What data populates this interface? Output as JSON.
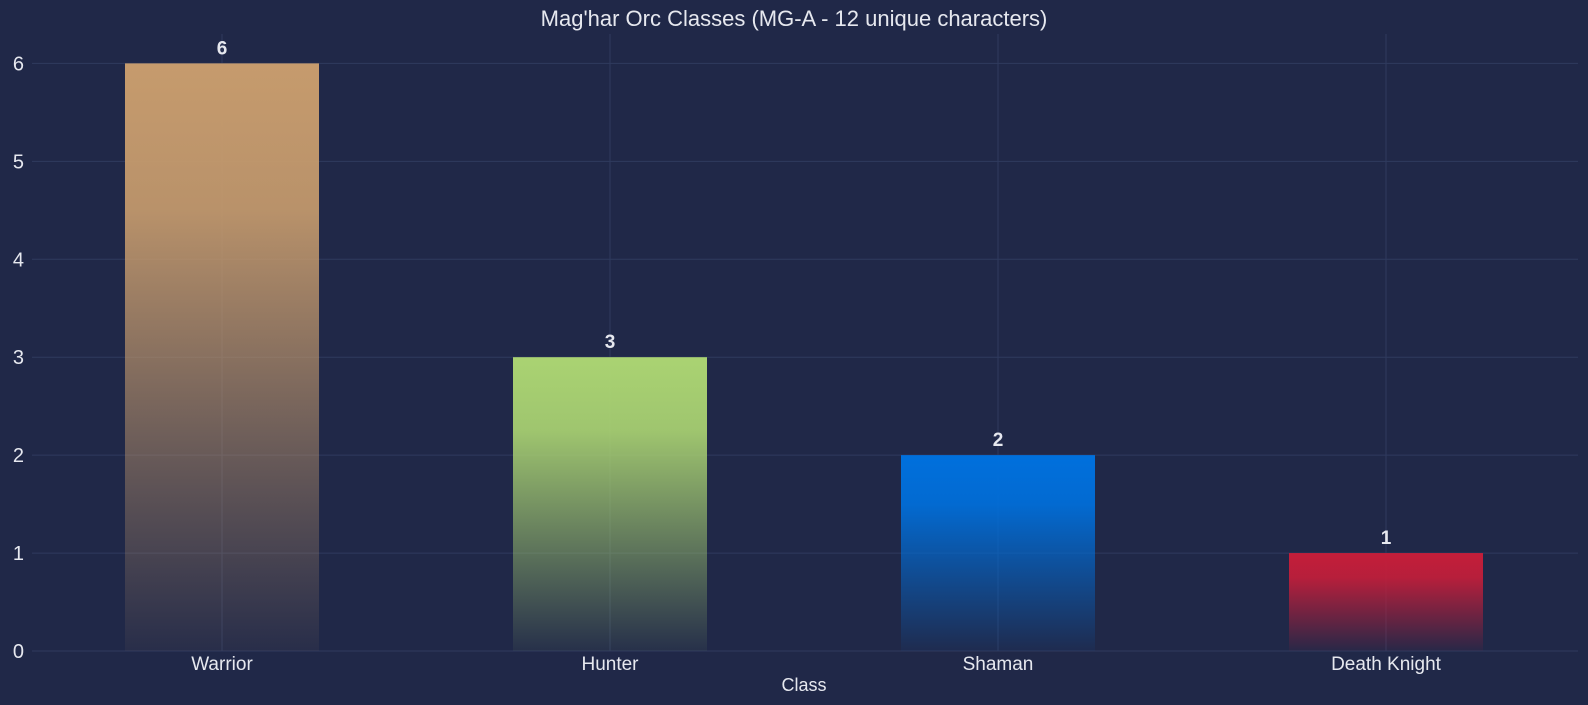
{
  "chart_data": {
    "type": "bar",
    "title": "Mag'har Orc Classes (MG-A - 12 unique characters)",
    "xlabel": "Class",
    "ylabel": "",
    "categories": [
      "Warrior",
      "Hunter",
      "Shaman",
      "Death Knight"
    ],
    "values": [
      6,
      3,
      2,
      1
    ],
    "data_labels": [
      "6",
      "3",
      "2",
      "1"
    ],
    "colors": [
      "#c69b6d",
      "#aad372",
      "#0070dd",
      "#c41e3a"
    ],
    "ylim": [
      0,
      6.3
    ],
    "yticks": [
      0,
      1,
      2,
      3,
      4,
      5,
      6
    ],
    "grid": true,
    "legend": "none"
  }
}
